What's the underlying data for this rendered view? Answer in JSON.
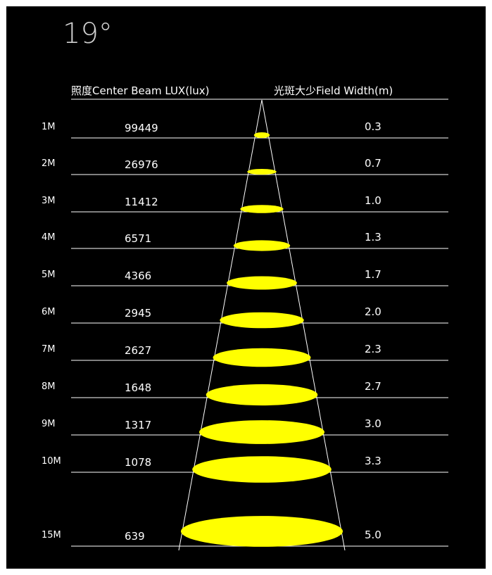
{
  "title": "19°",
  "header": {
    "lux_label": "照度Center Beam LUX(lux)",
    "width_label": "光斑大少Field Width(m)"
  },
  "colors": {
    "background": "#000000",
    "lines": "#ffffff",
    "spot": "#ffff00"
  },
  "rows": [
    {
      "distance": "1M",
      "lux": "99449",
      "width": "0.3"
    },
    {
      "distance": "2M",
      "lux": "26976",
      "width": "0.7"
    },
    {
      "distance": "3M",
      "lux": "11412",
      "width": "1.0"
    },
    {
      "distance": "4M",
      "lux": "6571",
      "width": "1.3"
    },
    {
      "distance": "5M",
      "lux": "4366",
      "width": "1.7"
    },
    {
      "distance": "6M",
      "lux": "2945",
      "width": "2.0"
    },
    {
      "distance": "7M",
      "lux": "2627",
      "width": "2.3"
    },
    {
      "distance": "8M",
      "lux": "1648",
      "width": "2.7"
    },
    {
      "distance": "9M",
      "lux": "1317",
      "width": "3.0"
    },
    {
      "distance": "10M",
      "lux": "1078",
      "width": "3.3"
    },
    {
      "distance": "15M",
      "lux": "639",
      "width": "5.0"
    }
  ]
}
